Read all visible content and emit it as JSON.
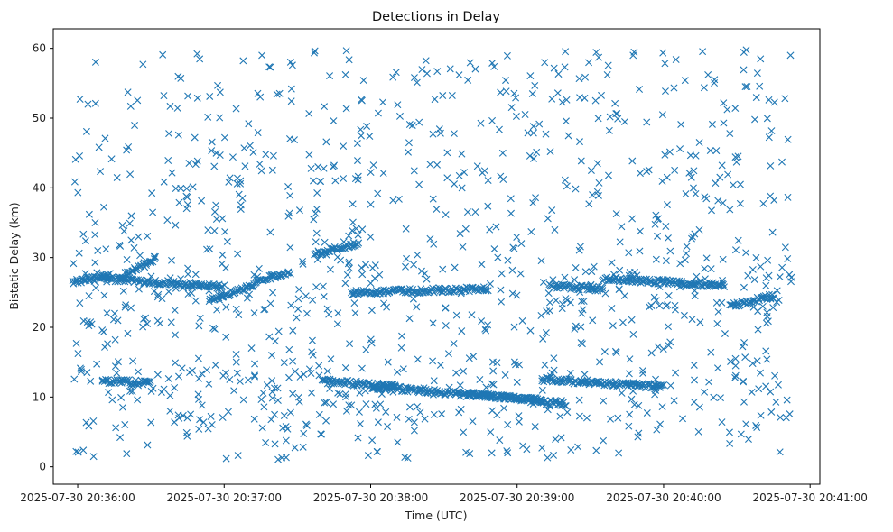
{
  "chart_data": {
    "type": "scatter",
    "title": "Detections in Delay",
    "xlabel": "Time (UTC)",
    "ylabel": "Bistatic Delay (km)",
    "x_axis_type": "time",
    "xlim": [
      "2025-07-30 20:35:50",
      "2025-07-30 20:41:04"
    ],
    "ylim": [
      -2.5,
      62.8
    ],
    "x_ticks": [
      "2025-07-30 20:36:00",
      "2025-07-30 20:37:00",
      "2025-07-30 20:38:00",
      "2025-07-30 20:39:00",
      "2025-07-30 20:40:00",
      "2025-07-30 20:41:00"
    ],
    "y_ticks": [
      0,
      10,
      20,
      30,
      40,
      50,
      60
    ],
    "marker": "x",
    "color": "#1f77b4",
    "grid": false,
    "legend": "none",
    "point_count_estimate": 1500,
    "series": [
      {
        "description_note": "",
        "tracks": [
          {
            "start": [
              "2025-07-30 20:35:58",
              26.5
            ],
            "end": [
              "2025-07-30 20:36:13",
              27.5
            ]
          },
          {
            "start": [
              "2025-07-30 20:36:10",
              27.0
            ],
            "end": [
              "2025-07-30 20:37:00",
              25.8
            ]
          },
          {
            "start": [
              "2025-07-30 20:36:17",
              27.0
            ],
            "end": [
              "2025-07-30 20:36:32",
              30.0
            ]
          },
          {
            "start": [
              "2025-07-30 20:36:54",
              24.0
            ],
            "end": [
              "2025-07-30 20:37:12",
              26.0
            ]
          },
          {
            "start": [
              "2025-07-30 20:37:12",
              26.5
            ],
            "end": [
              "2025-07-30 20:37:27",
              28.0
            ]
          },
          {
            "start": [
              "2025-07-30 20:37:37",
              30.5
            ],
            "end": [
              "2025-07-30 20:37:55",
              32.0
            ]
          },
          {
            "start": [
              "2025-07-30 20:37:52",
              25.0
            ],
            "end": [
              "2025-07-30 20:38:48",
              25.5
            ]
          },
          {
            "start": [
              "2025-07-30 20:39:13",
              26.0
            ],
            "end": [
              "2025-07-30 20:39:35",
              25.5
            ]
          },
          {
            "start": [
              "2025-07-30 20:39:35",
              27.0
            ],
            "end": [
              "2025-07-30 20:40:25",
              26.0
            ]
          },
          {
            "start": [
              "2025-07-30 20:40:27",
              23.0
            ],
            "end": [
              "2025-07-30 20:40:45",
              24.5
            ]
          },
          {
            "start": [
              "2025-07-30 20:36:10",
              12.3
            ],
            "end": [
              "2025-07-30 20:36:30",
              12.0
            ]
          },
          {
            "start": [
              "2025-07-30 20:37:40",
              12.3
            ],
            "end": [
              "2025-07-30 20:38:10",
              11.5
            ]
          },
          {
            "start": [
              "2025-07-30 20:38:00",
              11.5
            ],
            "end": [
              "2025-07-30 20:39:10",
              9.5
            ]
          },
          {
            "start": [
              "2025-07-30 20:38:40",
              10.5
            ],
            "end": [
              "2025-07-30 20:39:20",
              9.0
            ]
          },
          {
            "start": [
              "2025-07-30 20:39:10",
              12.5
            ],
            "end": [
              "2025-07-30 20:40:00",
              11.5
            ]
          }
        ]
      }
    ]
  }
}
